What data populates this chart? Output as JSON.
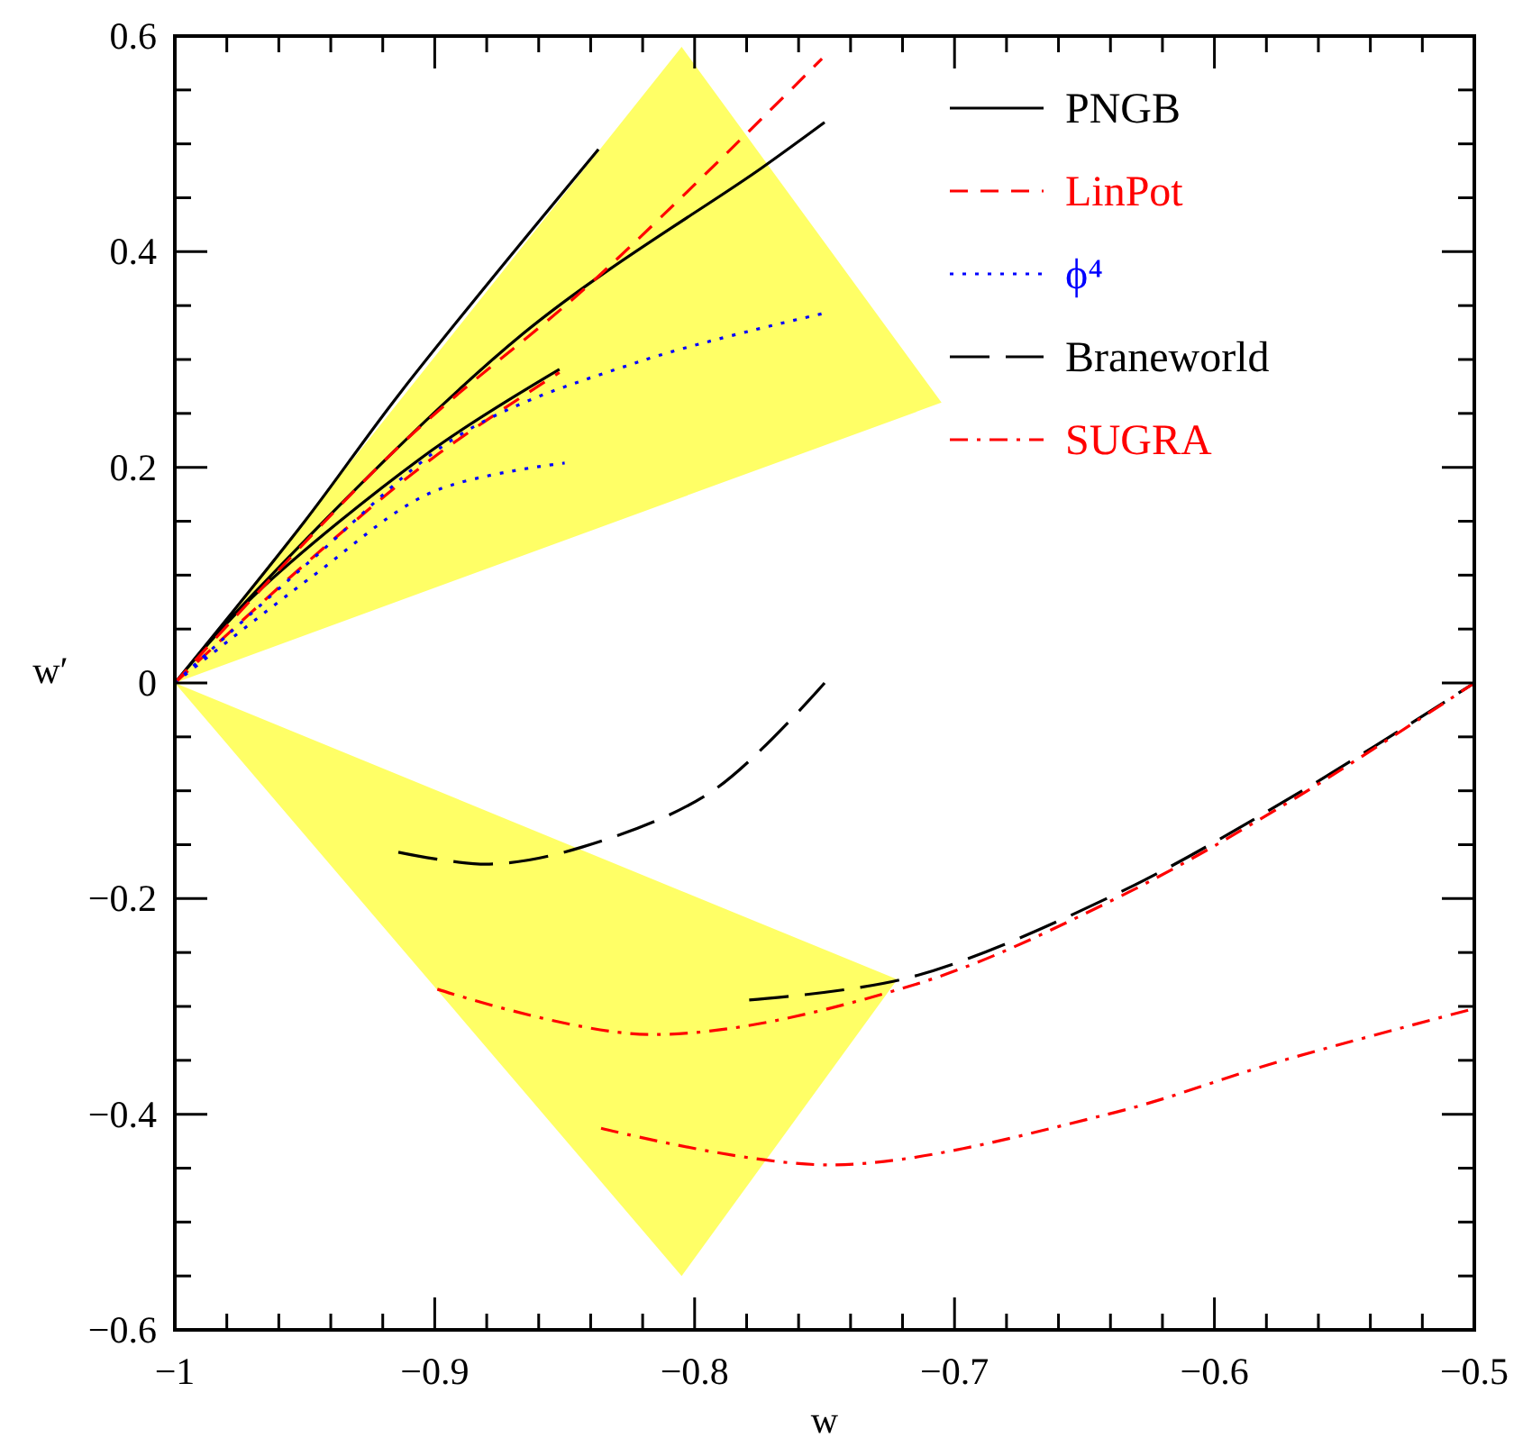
{
  "chart_data": {
    "type": "line",
    "xlabel": "w",
    "ylabel": "w′",
    "xlim": [
      -1,
      -0.5
    ],
    "ylim": [
      -0.6,
      0.6
    ],
    "xticks": [
      -1,
      {
        "value": -0.98,
        "label": null
      },
      {
        "value": -0.96,
        "label": null
      },
      {
        "value": -0.94,
        "label": null
      },
      {
        "value": -0.92,
        "label": null
      },
      -0.9,
      {
        "value": -0.88,
        "label": null
      },
      {
        "value": -0.86,
        "label": null
      },
      {
        "value": -0.84,
        "label": null
      },
      {
        "value": -0.82,
        "label": null
      },
      -0.8,
      {
        "value": -0.78,
        "label": null
      },
      {
        "value": -0.76,
        "label": null
      },
      {
        "value": -0.74,
        "label": null
      },
      {
        "value": -0.72,
        "label": null
      },
      -0.7,
      {
        "value": -0.68,
        "label": null
      },
      {
        "value": -0.66,
        "label": null
      },
      {
        "value": -0.64,
        "label": null
      },
      {
        "value": -0.62,
        "label": null
      },
      -0.6,
      {
        "value": -0.58,
        "label": null
      },
      {
        "value": -0.56,
        "label": null
      },
      {
        "value": -0.54,
        "label": null
      },
      {
        "value": -0.52,
        "label": null
      },
      -0.5
    ],
    "yticks": [
      -0.6,
      {
        "value": -0.55,
        "label": null
      },
      {
        "value": -0.5,
        "label": null
      },
      {
        "value": -0.45,
        "label": null
      },
      -0.4,
      {
        "value": -0.35,
        "label": null
      },
      {
        "value": -0.3,
        "label": null
      },
      {
        "value": -0.25,
        "label": null
      },
      -0.2,
      {
        "value": -0.15,
        "label": null
      },
      {
        "value": -0.1,
        "label": null
      },
      {
        "value": -0.05,
        "label": null
      },
      0,
      {
        "value": 0.05,
        "label": null
      },
      {
        "value": 0.1,
        "label": null
      },
      {
        "value": 0.15,
        "label": null
      },
      0.2,
      {
        "value": 0.25,
        "label": null
      },
      {
        "value": 0.3,
        "label": null
      },
      {
        "value": 0.35,
        "label": null
      },
      0.4,
      {
        "value": 0.45,
        "label": null
      },
      {
        "value": 0.5,
        "label": null
      },
      {
        "value": 0.55,
        "label": null
      },
      0.6
    ],
    "legend": "top right",
    "series": [
      {
        "type": "area",
        "color": "#ffff00",
        "x": [
          -1,
          -0.805,
          -0.705
        ],
        "values": [
          null,
          null,
          null
        ],
        "upper": [
          0,
          0.59,
          0.26
        ],
        "lower": [
          0,
          0.172,
          0.26
        ]
      },
      {
        "type": "area",
        "color": "#ffff00",
        "x": [
          -1,
          -0.805,
          -0.722
        ],
        "values": [
          null,
          null,
          null
        ],
        "upper": [
          0,
          -0.193,
          -0.275
        ],
        "lower": [
          0,
          -0.55,
          -0.275
        ]
      },
      {
        "name": "PNGB",
        "color": "#000000",
        "line_style": "solid",
        "x": [
          -1,
          -0.95,
          -0.913,
          -0.837,
          null,
          -1,
          -0.97,
          -0.866,
          -0.774,
          -0.75,
          null,
          -1,
          -0.97,
          -0.901,
          -0.852
        ],
        "values": [
          0,
          0.15,
          0.27,
          0.495,
          null,
          0,
          0.082,
          0.324,
          0.478,
          0.52,
          null,
          0,
          0.08,
          0.216,
          0.291
        ]
      },
      {
        "name": "LinPot",
        "color": "#ff0000",
        "line_style": "dashed",
        "x": [
          -1,
          -0.913,
          -0.838,
          -0.751,
          null,
          -1,
          -0.95,
          -0.9,
          -0.852
        ],
        "values": [
          0,
          0.221,
          0.375,
          0.579,
          null,
          0,
          0.11,
          0.21,
          0.288
        ]
      },
      {
        "name": "ϕ⁴",
        "color": "#0000ff",
        "line_style": "dotted",
        "x": [
          -1,
          -0.947,
          -0.889,
          -0.82,
          -0.75,
          null,
          -1,
          -0.947,
          -0.901,
          -0.85
        ],
        "values": [
          0,
          0.115,
          0.232,
          0.299,
          0.343,
          null,
          0,
          0.099,
          0.177,
          0.204
        ]
      },
      {
        "name": "Braneworld",
        "color": "#000000",
        "line_style": "longdash",
        "x": [
          -0.914,
          -0.879,
          -0.843,
          -0.793,
          -0.75,
          null,
          -0.779,
          -0.717,
          -0.638,
          -0.569,
          -0.5
        ],
        "values": [
          -0.157,
          -0.168,
          -0.152,
          -0.1,
          0,
          null,
          -0.294,
          -0.273,
          -0.196,
          -0.104,
          0
        ]
      },
      {
        "name": "SUGRA",
        "color": "#ff0000",
        "line_style": "dashdot",
        "x": [
          -0.899,
          -0.818,
          -0.717,
          -0.638,
          -0.569,
          -0.5,
          null,
          -0.836,
          -0.747,
          -0.641,
          -0.575,
          -0.5
        ],
        "values": [
          -0.284,
          -0.326,
          -0.281,
          -0.2,
          -0.107,
          0,
          null,
          -0.413,
          -0.447,
          -0.4,
          -0.351,
          -0.302
        ]
      }
    ]
  }
}
